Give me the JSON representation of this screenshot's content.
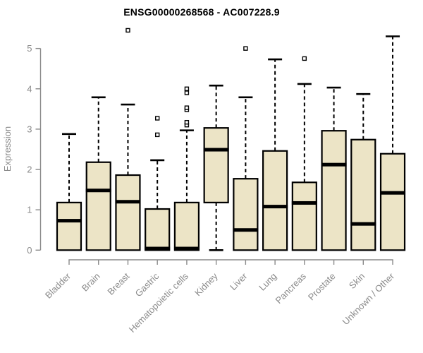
{
  "chart_data": {
    "type": "boxplot",
    "title": "ENSG00000268568 - AC007228.9",
    "xlabel": "",
    "ylabel": "Expression",
    "ylim": [
      0,
      5.45
    ],
    "yticks": [
      0,
      1,
      2,
      3,
      4,
      5
    ],
    "grid": false,
    "legend": false,
    "categories": [
      "Bladder",
      "Brain",
      "Breast",
      "Gastric",
      "Hematopoietic cells",
      "Kidney",
      "Liver",
      "Lung",
      "Pancreas",
      "Prostate",
      "Skin",
      "Unknown / Other"
    ],
    "series": [
      {
        "category": "Bladder",
        "min": 0,
        "q1": 0,
        "median": 0.73,
        "q3": 1.18,
        "whisker_high": 2.88,
        "outliers": []
      },
      {
        "category": "Brain",
        "min": 0,
        "q1": 0,
        "median": 1.48,
        "q3": 2.18,
        "whisker_high": 3.79,
        "outliers": []
      },
      {
        "category": "Breast",
        "min": 0,
        "q1": 0,
        "median": 1.2,
        "q3": 1.86,
        "whisker_high": 3.61,
        "outliers": [
          5.45
        ]
      },
      {
        "category": "Gastric",
        "min": 0,
        "q1": 0,
        "median": 0.04,
        "q3": 1.02,
        "whisker_high": 2.23,
        "outliers": [
          2.86,
          3.27
        ]
      },
      {
        "category": "Hematopoietic cells",
        "min": 0,
        "q1": 0,
        "median": 0.04,
        "q3": 1.18,
        "whisker_high": 2.97,
        "outliers": [
          3.1,
          3.17,
          3.48,
          3.53,
          3.9,
          4.0
        ]
      },
      {
        "category": "Kidney",
        "min": 0,
        "q1": 1.18,
        "median": 2.49,
        "q3": 3.03,
        "whisker_high": 4.08,
        "outliers": []
      },
      {
        "category": "Liver",
        "min": 0,
        "q1": 0,
        "median": 0.5,
        "q3": 1.77,
        "whisker_high": 3.79,
        "outliers": [
          5.0
        ]
      },
      {
        "category": "Lung",
        "min": 0,
        "q1": 0,
        "median": 1.08,
        "q3": 2.46,
        "whisker_high": 4.73,
        "outliers": []
      },
      {
        "category": "Pancreas",
        "min": 0,
        "q1": 0,
        "median": 1.17,
        "q3": 1.68,
        "whisker_high": 4.12,
        "outliers": [
          4.75
        ]
      },
      {
        "category": "Prostate",
        "min": 0,
        "q1": 0,
        "median": 2.12,
        "q3": 2.96,
        "whisker_high": 4.03,
        "outliers": []
      },
      {
        "category": "Skin",
        "min": 0,
        "q1": 0,
        "median": 0.65,
        "q3": 2.74,
        "whisker_high": 3.87,
        "outliers": []
      },
      {
        "category": "Unknown / Other",
        "min": 0,
        "q1": 0,
        "median": 1.42,
        "q3": 2.39,
        "whisker_high": 5.3,
        "outliers": []
      }
    ],
    "colors": {
      "box_fill": "#ece4c6",
      "box_stroke": "#000000",
      "median": "#000000",
      "whisker": "#000000",
      "outlier_stroke": "#000000",
      "axis_line": "#8a8a8a",
      "axis_text": "#8a8a8a",
      "title_text": "#000000",
      "background": "#ffffff"
    }
  }
}
